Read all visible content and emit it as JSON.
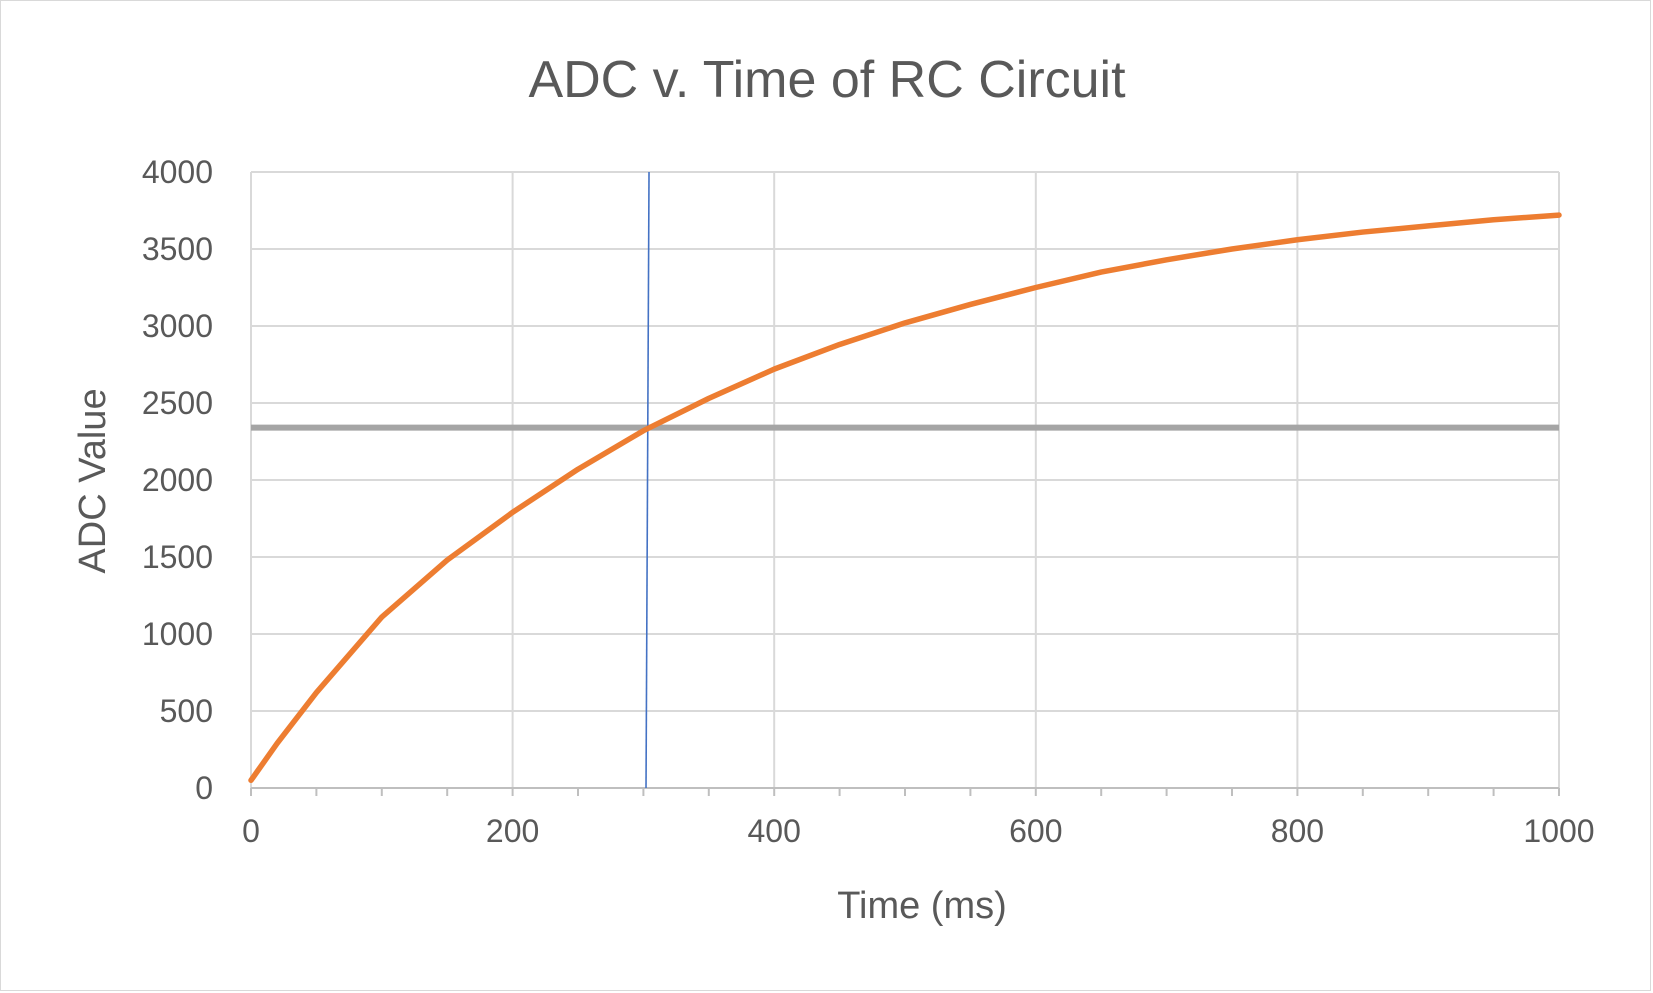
{
  "chart_data": {
    "type": "line",
    "title": "ADC v. Time of RC Circuit",
    "xlabel": "Time (ms)",
    "ylabel": "ADC Value",
    "xlim": [
      0,
      1000
    ],
    "ylim": [
      0,
      4000
    ],
    "x_ticks": [
      "0",
      "200",
      "400",
      "600",
      "800",
      "1000"
    ],
    "y_ticks": [
      "0",
      "500",
      "1000",
      "1500",
      "2000",
      "2500",
      "3000",
      "3500",
      "4000"
    ],
    "grid": true,
    "legend": "none",
    "series": [
      {
        "color": "#ED7D31",
        "x": [
          0,
          20,
          50,
          100,
          150,
          200,
          250,
          300,
          350,
          400,
          450,
          500,
          550,
          600,
          650,
          700,
          750,
          800,
          850,
          900,
          950,
          1000
        ],
        "y": [
          50,
          290,
          620,
          1110,
          1480,
          1790,
          2070,
          2320,
          2530,
          2720,
          2880,
          3020,
          3140,
          3250,
          3350,
          3430,
          3500,
          3560,
          3610,
          3650,
          3690,
          3720
        ]
      }
    ],
    "reference_lines": [
      {
        "orientation": "horizontal",
        "y": 2340,
        "color": "#A5A5A5"
      },
      {
        "orientation": "vertical",
        "x": 302,
        "color": "#4472C4"
      }
    ]
  }
}
